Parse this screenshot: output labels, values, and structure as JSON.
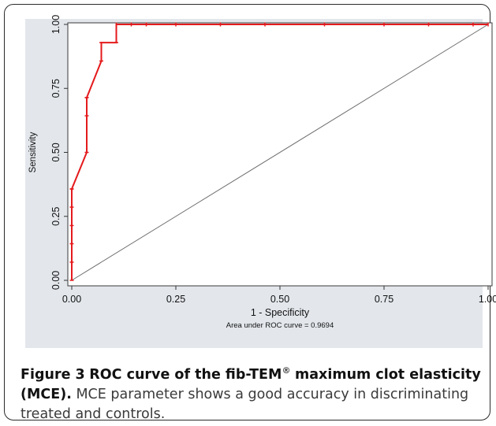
{
  "colors": {
    "roc_line": "#e41a1c",
    "reference_line": "#6f6f6f",
    "panel_bg": "#e3e7ec",
    "plot_bg": "#ffffff"
  },
  "caption": {
    "label": "Figure 3",
    "title_part1": "ROC curve of the fib-TEM",
    "title_sup": "®",
    "title_part2": "maximum clot elasticity (MCE).",
    "body": "MCE parameter shows a good accuracy in discriminating treated and controls."
  },
  "chart_data": {
    "type": "line",
    "xlabel": "1 - Specificity",
    "ylabel": "Sensitivity",
    "note": "Area under ROC curve = 0.9694",
    "xlim": [
      0,
      1
    ],
    "ylim": [
      0,
      1
    ],
    "xticks": [
      "0.00",
      "0.25",
      "0.50",
      "0.75",
      "1.00"
    ],
    "yticks": [
      "0.00",
      "0.25",
      "0.50",
      "0.75",
      "1.00"
    ],
    "grid": false,
    "series": [
      {
        "x": [
          0,
          0,
          0,
          0,
          0,
          0,
          0,
          0.036,
          0.036,
          0.036,
          0.036,
          0.071,
          0.071,
          0.107,
          0.107,
          0.143,
          0.179,
          0.25,
          0.357,
          0.464,
          0.607,
          0.75,
          0.857,
          0.964,
          1.0
        ],
        "y": [
          0,
          0.071,
          0.143,
          0.214,
          0.286,
          0.357,
          0.357,
          0.5,
          0.643,
          0.714,
          0.714,
          0.857,
          0.929,
          0.929,
          1.0,
          1.0,
          1.0,
          1.0,
          1.0,
          1.0,
          1.0,
          1.0,
          1.0,
          1.0,
          1.0
        ]
      },
      {
        "x": [
          0,
          1
        ],
        "y": [
          0,
          1
        ]
      }
    ]
  }
}
